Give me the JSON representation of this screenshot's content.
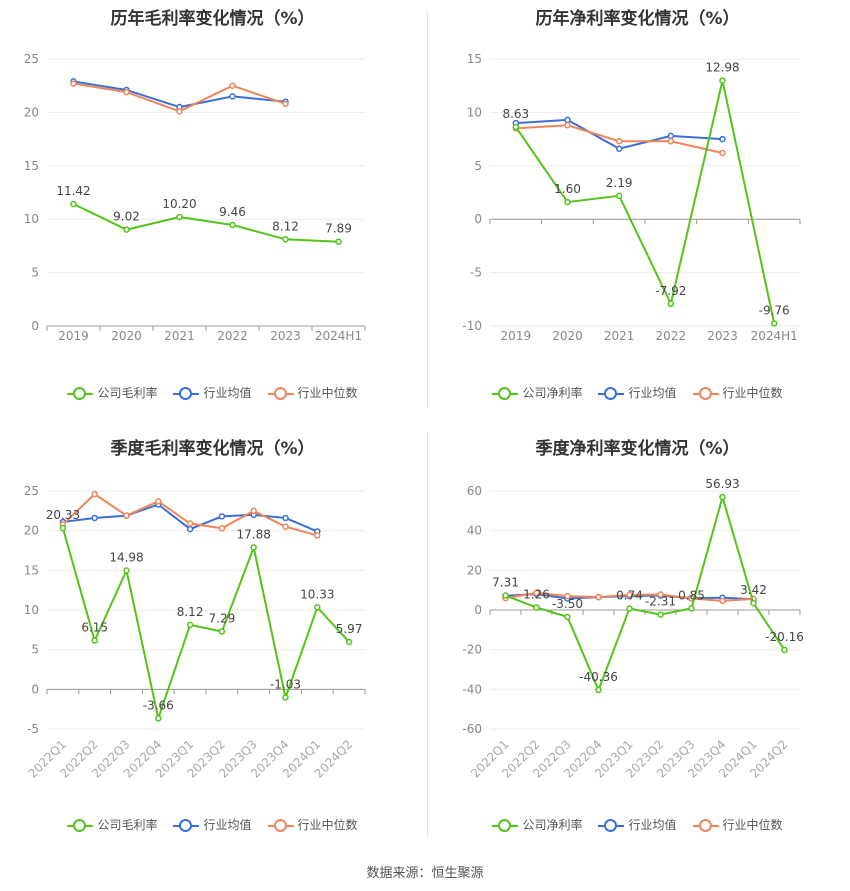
{
  "source": "数据来源：恒生聚源",
  "chart_data": [
    {
      "type": "line",
      "title": "历年毛利率变化情况（%）",
      "categories": [
        "2019",
        "2020",
        "2021",
        "2022",
        "2023",
        "2024H1"
      ],
      "ylim": [
        0,
        25
      ],
      "yticks": [
        0,
        5,
        10,
        15,
        20,
        25
      ],
      "series": [
        {
          "name": "公司毛利率",
          "color": "#52c41a",
          "values": [
            11.42,
            9.02,
            10.2,
            9.46,
            8.12,
            7.89
          ],
          "labels": [
            "11.42",
            "9.02",
            "10.20",
            "9.46",
            "8.12",
            "7.89"
          ]
        },
        {
          "name": "行业均值",
          "color": "#3b6fd8",
          "values": [
            22.9,
            22.1,
            20.5,
            21.5,
            21.0,
            null
          ]
        },
        {
          "name": "行业中位数",
          "color": "#f0855a",
          "values": [
            22.7,
            21.9,
            20.1,
            22.5,
            20.8,
            null
          ]
        }
      ],
      "tick_rotate": false
    },
    {
      "type": "line",
      "title": "历年净利率变化情况（%）",
      "categories": [
        "2019",
        "2020",
        "2021",
        "2022",
        "2023",
        "2024H1"
      ],
      "ylim": [
        -10,
        15
      ],
      "yticks": [
        -10,
        -5,
        0,
        5,
        10,
        15
      ],
      "series": [
        {
          "name": "公司净利率",
          "color": "#52c41a",
          "values": [
            8.63,
            1.6,
            2.19,
            -7.92,
            12.98,
            -9.76
          ],
          "labels": [
            "8.63",
            "1.60",
            "2.19",
            "-7.92",
            "12.98",
            "-9.76"
          ]
        },
        {
          "name": "行业均值",
          "color": "#3b6fd8",
          "values": [
            9.0,
            9.3,
            6.6,
            7.8,
            7.5,
            null
          ]
        },
        {
          "name": "行业中位数",
          "color": "#f0855a",
          "values": [
            8.5,
            8.8,
            7.3,
            7.3,
            6.2,
            null
          ]
        }
      ],
      "tick_rotate": false
    },
    {
      "type": "line",
      "title": "季度毛利率变化情况（%）",
      "categories": [
        "2022Q1",
        "2022Q2",
        "2022Q3",
        "2022Q4",
        "2023Q1",
        "2023Q2",
        "2023Q3",
        "2023Q4",
        "2024Q1",
        "2024Q2"
      ],
      "ylim": [
        -5,
        25
      ],
      "yticks": [
        -5,
        0,
        5,
        10,
        15,
        20,
        25
      ],
      "series": [
        {
          "name": "公司毛利率",
          "color": "#52c41a",
          "values": [
            20.33,
            6.15,
            14.98,
            -3.66,
            8.12,
            7.29,
            17.88,
            -1.03,
            10.33,
            5.97
          ],
          "labels": [
            "20.33",
            "6.15",
            "14.98",
            "-3.66",
            "8.12",
            "7.29",
            "17.88",
            "-1.03",
            "10.33",
            "5.97"
          ]
        },
        {
          "name": "行业均值",
          "color": "#3b6fd8",
          "values": [
            21.1,
            21.6,
            21.9,
            23.3,
            20.2,
            21.8,
            22.0,
            21.6,
            19.9,
            null
          ]
        },
        {
          "name": "行业中位数",
          "color": "#f0855a",
          "values": [
            20.8,
            24.6,
            21.9,
            23.7,
            20.9,
            20.3,
            22.5,
            20.5,
            19.4,
            null
          ]
        }
      ],
      "tick_rotate": true
    },
    {
      "type": "line",
      "title": "季度净利率变化情况（%）",
      "categories": [
        "2022Q1",
        "2022Q2",
        "2022Q3",
        "2022Q4",
        "2023Q1",
        "2023Q2",
        "2023Q3",
        "2023Q4",
        "2024Q1",
        "2024Q2"
      ],
      "ylim": [
        -60,
        60
      ],
      "yticks": [
        -60,
        -40,
        -20,
        0,
        20,
        40,
        60
      ],
      "series": [
        {
          "name": "公司净利率",
          "color": "#52c41a",
          "values": [
            7.31,
            1.26,
            -3.5,
            -40.36,
            0.74,
            -2.31,
            0.85,
            56.93,
            3.42,
            -20.16
          ],
          "labels": [
            "7.31",
            "1.26",
            "-3.50",
            "-40.36",
            "0.74",
            "-2.31",
            "0.85",
            "56.93",
            "3.42",
            "-20.16"
          ]
        },
        {
          "name": "行业均值",
          "color": "#3b6fd8",
          "values": [
            7.2,
            8.0,
            5.8,
            6.5,
            7.0,
            7.3,
            6.0,
            6.2,
            5.4,
            null
          ]
        },
        {
          "name": "行业中位数",
          "color": "#f0855a",
          "values": [
            6.0,
            8.6,
            7.0,
            6.5,
            7.6,
            7.8,
            5.8,
            4.6,
            5.6,
            null
          ]
        }
      ],
      "tick_rotate": true
    }
  ]
}
